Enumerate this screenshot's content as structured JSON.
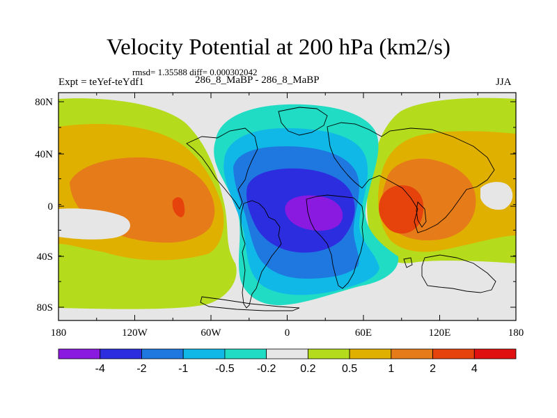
{
  "title": "Velocity Potential at 200 hPa (km2/s)",
  "stats": "rmsd= 1.35588 diff= 0.000302042",
  "left_label": "Expt = teYef-teYdf1",
  "center_label": "286_8_MaBP - 286_8_MaBP",
  "right_label": "JJA",
  "y_ticks": [
    "80N",
    "40N",
    "0",
    "40S",
    "80S"
  ],
  "x_ticks": [
    "180",
    "120W",
    "60W",
    "0",
    "60E",
    "120E",
    "180"
  ],
  "colorbar": {
    "labels": [
      "-4",
      "-2",
      "-1",
      "-0.5",
      "-0.2",
      "0.2",
      "0.5",
      "1",
      "2",
      "4"
    ],
    "colors": [
      "#8a1ae0",
      "#2d2de0",
      "#1f78e0",
      "#10b8e8",
      "#20dcc4",
      "#e6e6e6",
      "#b4dc1c",
      "#e0b000",
      "#e67b1a",
      "#e6420c",
      "#e01010"
    ]
  },
  "map_colors": {
    "background": "#e6e6e6",
    "pos_02": "#b4dc1c",
    "pos_05": "#e0b000",
    "pos_1": "#e67b1a",
    "pos_2": "#e6420c",
    "neg_02": "#20dcc4",
    "neg_05": "#10b8e8",
    "neg_1": "#1f78e0",
    "neg_2": "#2d2de0",
    "neg_4": "#8a1ae0"
  }
}
